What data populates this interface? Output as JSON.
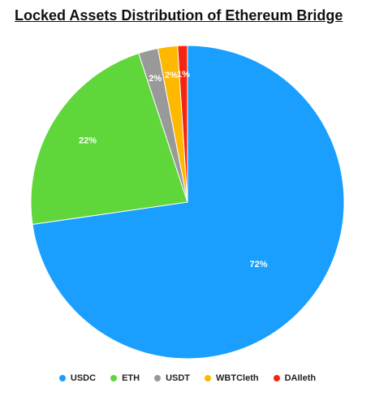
{
  "chart_data": {
    "type": "pie",
    "title": "Locked Assets Distribution of Ethereum Bridge",
    "slices": [
      {
        "name": "USDC",
        "value": 72,
        "label": "72%",
        "color": "#1a9fff"
      },
      {
        "name": "ETH",
        "value": 22,
        "label": "22%",
        "color": "#5fd63a"
      },
      {
        "name": "USDT",
        "value": 2,
        "label": "2%",
        "color": "#999999"
      },
      {
        "name": "WBTCleth",
        "value": 2,
        "label": "2%",
        "color": "#ffb800"
      },
      {
        "name": "DAIleth",
        "value": 1,
        "label": "1%",
        "color": "#f5260f"
      }
    ],
    "legend_position": "bottom"
  }
}
